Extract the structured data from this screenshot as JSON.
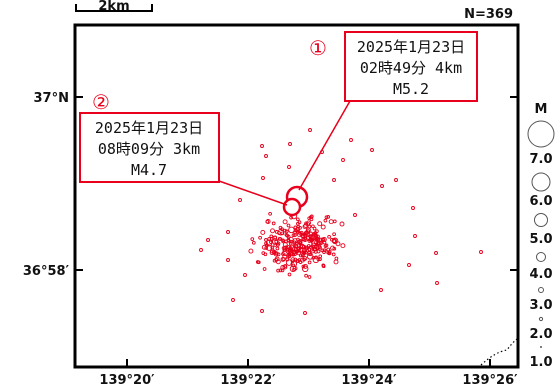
{
  "header": {
    "scale_label": "2km",
    "count_label": "N=369"
  },
  "axes": {
    "lat_labels": [
      "37°N",
      "36°58′"
    ],
    "lon_labels": [
      "139°20′",
      "139°22′",
      "139°24′",
      "139°26′"
    ]
  },
  "legend": {
    "title": "M",
    "magnitudes": [
      "7.0",
      "6.0",
      "5.0",
      "4.0",
      "3.0",
      "2.0",
      "1.0"
    ]
  },
  "events": [
    {
      "id": "①",
      "date": "2025年1月23日",
      "time_depth": "02時49分 4km",
      "magnitude": "M5.2"
    },
    {
      "id": "②",
      "date": "2025年1月23日",
      "time_depth": "08時09分 3km",
      "magnitude": "M4.7"
    }
  ],
  "colors": {
    "accent": "#e8001c",
    "frame": "#000000",
    "background": "#ffffff"
  }
}
